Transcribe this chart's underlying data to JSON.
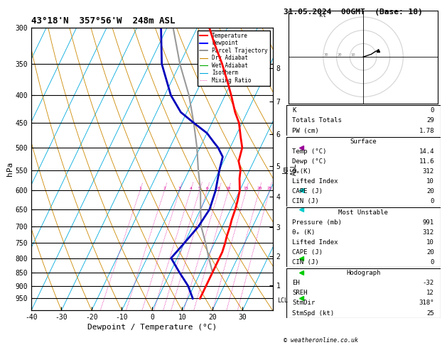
{
  "title_left": "43°18'N  357°56'W  248m ASL",
  "title_right": "31.05.2024  00GMT  (Base: 18)",
  "xlabel": "Dewpoint / Temperature (°C)",
  "ylabel_left": "hPa",
  "ylabel_right": "km\nASL",
  "pressure_ticks": [
    300,
    350,
    400,
    450,
    500,
    550,
    600,
    650,
    700,
    750,
    800,
    850,
    900,
    950
  ],
  "temp_ticks": [
    -40,
    -30,
    -20,
    -10,
    0,
    10,
    20,
    30
  ],
  "T_min": -40,
  "T_max": 40,
  "P_min": 300,
  "P_max": 1000,
  "skew_factor": 45,
  "temperature_profile": {
    "pressure": [
      300,
      320,
      350,
      380,
      400,
      430,
      450,
      480,
      500,
      530,
      550,
      570,
      600,
      630,
      650,
      680,
      700,
      730,
      750,
      780,
      800,
      830,
      850,
      880,
      900,
      930,
      950
    ],
    "temp": [
      -26,
      -22,
      -16,
      -11,
      -8,
      -4,
      -1,
      2,
      4,
      5,
      7,
      8,
      10,
      11,
      11.5,
      12,
      12.5,
      13,
      13.5,
      14,
      14,
      14,
      14,
      14,
      14,
      14,
      14
    ]
  },
  "dewpoint_profile": {
    "pressure": [
      300,
      350,
      400,
      430,
      450,
      470,
      490,
      500,
      520,
      550,
      600,
      650,
      700,
      750,
      800,
      850,
      900,
      950
    ],
    "temp": [
      -42,
      -36,
      -28,
      -22,
      -16,
      -10,
      -6,
      -4,
      -1,
      0,
      2,
      3,
      2,
      0,
      -2,
      3,
      8,
      11.6
    ]
  },
  "parcel_profile": {
    "pressure": [
      850,
      800,
      750,
      700,
      650,
      600,
      550,
      500,
      450,
      400,
      350,
      300
    ],
    "temp": [
      14,
      10.5,
      7,
      3,
      0,
      -3,
      -7,
      -11,
      -16,
      -22,
      -30,
      -38
    ]
  },
  "mixing_ratio_values": [
    1,
    2,
    3,
    4,
    5,
    6,
    8,
    10,
    15,
    20,
    25
  ],
  "colors": {
    "temperature": "#ff0000",
    "dewpoint": "#0000bb",
    "parcel": "#999999",
    "dry_adiabat": "#cc8800",
    "wet_adiabat": "#00aa00",
    "isotherm": "#00aadd",
    "mixing_ratio": "#dd0099",
    "background": "#ffffff"
  },
  "km_labels": [
    1,
    2,
    3,
    4,
    5,
    6,
    7,
    8
  ],
  "hodograph": {
    "K": 0,
    "Totals_Totals": 29,
    "PW_cm": 1.78,
    "surface_temp": 14.4,
    "surface_dewp": 11.6,
    "theta_e_K": 312,
    "lifted_index": 10,
    "CAPE_J": 20,
    "CIN_J": 0,
    "most_unstable_pressure_mb": 991,
    "most_unstable_theta_e_K": 312,
    "most_unstable_lifted_index": 10,
    "most_unstable_CAPE_J": 20,
    "most_unstable_CIN_J": 0,
    "EH": -32,
    "SREH": 12,
    "StmDir": "318°",
    "StmSpd_kt": 25
  },
  "footer": "© weatheronline.co.uk",
  "lcl_pressure": 960
}
